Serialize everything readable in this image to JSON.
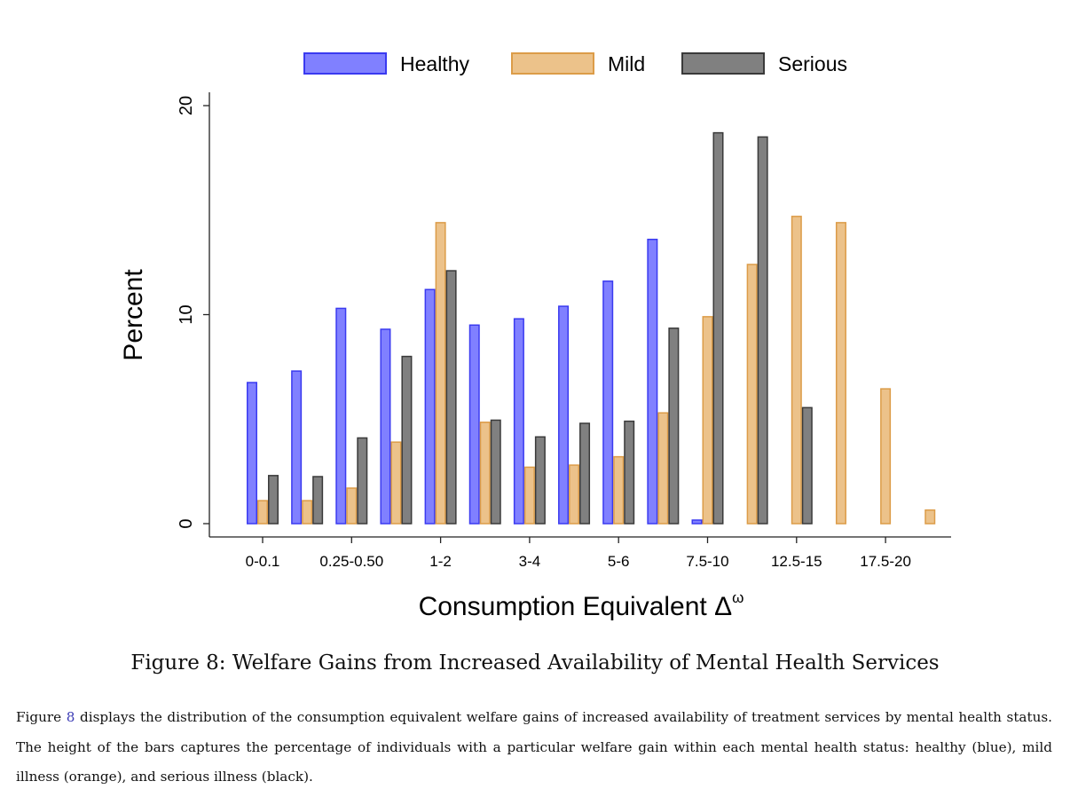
{
  "chart_data": {
    "type": "bar",
    "title": "",
    "xlabel": "Consumption Equivalent Δ",
    "xlabel_superscript": "ω",
    "ylabel": "Percent",
    "ylim": [
      0,
      20
    ],
    "yticks": [
      0,
      10,
      20
    ],
    "grid": false,
    "legend_position": "top",
    "categories": [
      "0-0.1",
      "",
      "0.25-0.50",
      "",
      "1-2",
      "",
      "3-4",
      "",
      "5-6",
      "",
      "7.5-10",
      "",
      "12.5-15",
      "",
      "17.5-20",
      ""
    ],
    "series": [
      {
        "name": "Healthy",
        "color": "#8080ff",
        "edge": "#3a3af0",
        "values": [
          6.75,
          7.3,
          10.3,
          9.3,
          11.2,
          9.5,
          9.8,
          10.4,
          11.6,
          13.6,
          0.17,
          0,
          0,
          0,
          0,
          0
        ]
      },
      {
        "name": "Mild",
        "color": "#ecc28a",
        "edge": "#dc9c48",
        "values": [
          1.1,
          1.1,
          1.7,
          3.9,
          14.4,
          4.85,
          2.7,
          2.8,
          3.2,
          5.3,
          9.9,
          12.4,
          14.7,
          14.4,
          6.45,
          0.65
        ]
      },
      {
        "name": "Serious",
        "color": "#808080",
        "edge": "#3a3a3a",
        "values": [
          2.3,
          2.25,
          4.1,
          8.0,
          12.1,
          4.95,
          4.15,
          4.8,
          4.9,
          9.35,
          18.7,
          18.5,
          5.55,
          0,
          0,
          0
        ]
      }
    ]
  },
  "figure": {
    "caption": "Figure 8: Welfare Gains from Increased Availability of Mental Health Services",
    "para_prefix": "Figure ",
    "para_ref": "8",
    "para_text": " displays the distribution of the consumption equivalent welfare gains of increased availability of treatment services by mental health status. The height of the bars captures the percentage of individuals with a particular welfare gain within each mental health status: healthy (blue), mild illness (orange), and serious illness (black)."
  }
}
